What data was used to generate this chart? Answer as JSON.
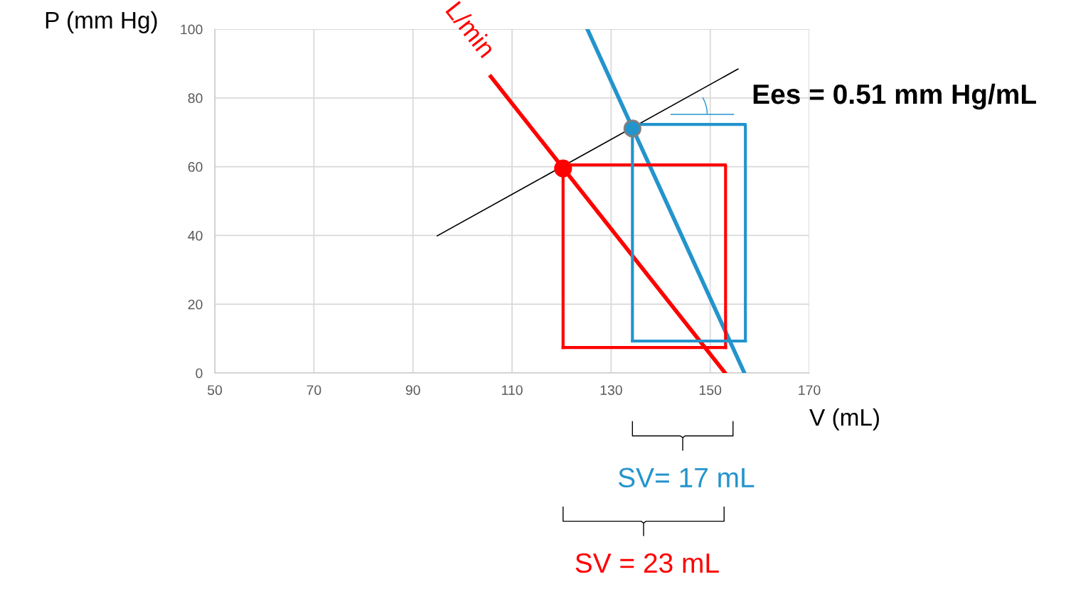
{
  "chart_data": {
    "type": "line",
    "xlabel": "V (mL)",
    "ylabel": "P (mm Hg)",
    "xlim": [
      50,
      170
    ],
    "xticks": [
      50,
      70,
      90,
      110,
      130,
      150,
      170
    ],
    "ylim": [
      0,
      100
    ],
    "yticks": [
      0,
      20,
      40,
      60,
      80,
      100
    ],
    "grid": true,
    "legend": false,
    "series": [
      {
        "name": "L/min",
        "color": "#ff0000",
        "x": [
          105.7,
          152.9
        ],
        "values": [
          86.2,
          0.2
        ]
      },
      {
        "color": "#2394cc",
        "x": [
          125.2,
          156.9
        ],
        "values": [
          100,
          0
        ]
      },
      {
        "name": "Ees = 0.51 mm Hg/mL",
        "color": "#000000",
        "x": [
          94.9,
          155.6
        ],
        "values": [
          39.9,
          88.4
        ]
      },
      {
        "color": "#ff0000",
        "x": [
          120.3,
          120.3,
          153.1,
          153.1
        ],
        "values": [
          7.4,
          60.5,
          60.5,
          7.4
        ]
      },
      {
        "color": "#ff0000",
        "x": [
          120.3,
          153.1
        ],
        "values": [
          7.4,
          7.4
        ]
      },
      {
        "color": "#2394cc",
        "x": [
          134.3,
          134.3,
          157.1,
          157.1
        ],
        "values": [
          9.3,
          72.3,
          72.3,
          9.3
        ]
      },
      {
        "color": "#2394cc",
        "x": [
          134.3,
          157.1
        ],
        "values": [
          9.3,
          9.3
        ]
      },
      {
        "type": "scatter",
        "marker": "circle",
        "color": "#ff0000",
        "x": [
          120.3
        ],
        "values": [
          59.5
        ]
      },
      {
        "type": "scatter",
        "marker": "circle",
        "color": "#2394cc",
        "x": [
          134.3
        ],
        "values": [
          71.1
        ]
      }
    ],
    "annotations": [
      "SV= 17 mL",
      "SV = 23 mL"
    ]
  }
}
